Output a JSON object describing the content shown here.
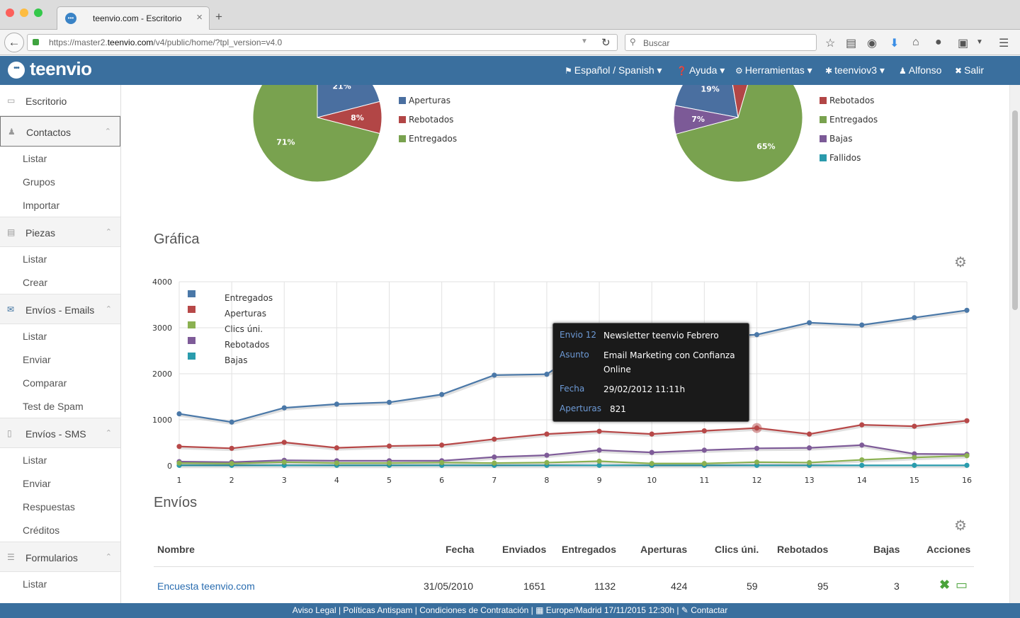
{
  "browser": {
    "tab_title": "teenvio.com - Escritorio",
    "url_prefix": "https://master2.",
    "url_domain": "teenvio.com",
    "url_suffix": "/v4/public/home/?tpl_version=v4.0",
    "search_placeholder": "Buscar",
    "new_tab_label": "+",
    "close_tab_label": "×"
  },
  "app": {
    "logo_text": "teenvio",
    "menu": [
      {
        "icon": "flag-icon",
        "label": "Español / Spanish ▾"
      },
      {
        "icon": "help-icon",
        "label": "Ayuda ▾"
      },
      {
        "icon": "gear-icon",
        "label": "Herramientas ▾"
      },
      {
        "icon": "gears-icon",
        "label": "teenviov3 ▾"
      },
      {
        "icon": "user-icon",
        "label": "Alfonso"
      },
      {
        "icon": "logout-icon",
        "label": "Salir"
      }
    ]
  },
  "sidebar": {
    "escritorio": "Escritorio",
    "contactos": {
      "label": "Contactos",
      "items": [
        "Listar",
        "Grupos",
        "Importar"
      ]
    },
    "piezas": {
      "label": "Piezas",
      "items": [
        "Listar",
        "Crear"
      ]
    },
    "envios_emails": {
      "label": "Envíos - Emails",
      "items": [
        "Listar",
        "Enviar",
        "Comparar",
        "Test de Spam"
      ]
    },
    "envios_sms": {
      "label": "Envíos - SMS",
      "items": [
        "Listar",
        "Enviar",
        "Respuestas",
        "Créditos"
      ]
    },
    "formularios": {
      "label": "Formularios",
      "items": [
        "Listar"
      ]
    }
  },
  "pies": [
    {
      "slices": [
        {
          "label": "21%",
          "value": 21,
          "color": "#4a6fa0"
        },
        {
          "label": "8%",
          "value": 8,
          "color": "#b24646"
        },
        {
          "label": "71%",
          "value": 71,
          "color": "#79a24f"
        }
      ],
      "legend": [
        {
          "name": "Aperturas",
          "color": "#4a6fa0"
        },
        {
          "name": "Rebotados",
          "color": "#b24646"
        },
        {
          "name": "Entregados",
          "color": "#79a24f"
        }
      ]
    },
    {
      "slices": [
        {
          "label": "19%",
          "value": 19,
          "color": "#4a6fa0"
        },
        {
          "label": "7%",
          "value": 7,
          "color": "#b24646"
        },
        {
          "label": "65%",
          "value": 65,
          "color": "#79a24f"
        },
        {
          "label": "7%",
          "value": 7,
          "color": "#7c5a97"
        }
      ],
      "legend": [
        {
          "name": "Rebotados",
          "color": "#b24646"
        },
        {
          "name": "Entregados",
          "color": "#79a24f"
        },
        {
          "name": "Bajas",
          "color": "#7c5a97"
        },
        {
          "name": "Fallidos",
          "color": "#2a9aac"
        }
      ]
    }
  ],
  "grafica": {
    "title": "Gráfica"
  },
  "chart_data": {
    "type": "line",
    "x": [
      1,
      2,
      3,
      4,
      5,
      6,
      7,
      8,
      9,
      10,
      11,
      12,
      13,
      14,
      15,
      16
    ],
    "ylim": [
      0,
      4000
    ],
    "yticks": [
      0,
      1000,
      2000,
      3000,
      4000
    ],
    "series": [
      {
        "name": "Entregados",
        "color": "#4a78a8",
        "values": [
          1130,
          950,
          1260,
          1340,
          1380,
          1550,
          1970,
          1990,
          2760,
          2780,
          2800,
          2850,
          3110,
          3060,
          3220,
          3380
        ]
      },
      {
        "name": "Aperturas",
        "color": "#b74848",
        "values": [
          420,
          380,
          510,
          390,
          430,
          450,
          580,
          690,
          750,
          690,
          760,
          821,
          690,
          890,
          860,
          980
        ]
      },
      {
        "name": "Clics úni.",
        "color": "#8bb151",
        "values": [
          60,
          50,
          80,
          60,
          60,
          70,
          60,
          70,
          100,
          50,
          50,
          80,
          70,
          130,
          180,
          220
        ]
      },
      {
        "name": "Rebotados",
        "color": "#7e5b98",
        "values": [
          90,
          80,
          120,
          110,
          110,
          110,
          190,
          230,
          340,
          290,
          340,
          380,
          390,
          450,
          260,
          250
        ]
      },
      {
        "name": "Bajas",
        "color": "#2a9cad",
        "values": [
          10,
          10,
          10,
          10,
          10,
          10,
          10,
          10,
          10,
          10,
          10,
          10,
          10,
          10,
          10,
          10
        ]
      }
    ]
  },
  "tooltip": {
    "envio_label": "Envio 12",
    "envio_value": "Newsletter teenvio Febrero",
    "asunto_label": "Asunto",
    "asunto_value": "Email Marketing con Confianza Online",
    "fecha_label": "Fecha",
    "fecha_value": "29/02/2012 11:11h",
    "aperturas_label": "Aperturas",
    "aperturas_value": "821"
  },
  "envios": {
    "title": "Envíos",
    "columns": [
      "Nombre",
      "Fecha",
      "Enviados",
      "Entregados",
      "Aperturas",
      "Clics úni.",
      "Rebotados",
      "Bajas",
      "Acciones"
    ],
    "rows": [
      {
        "nombre": "Encuesta teenvio.com",
        "fecha": "31/05/2010",
        "enviados": "1651",
        "entregados": "1132",
        "aperturas": "424",
        "clics": "59",
        "rebotados": "95",
        "bajas": "3"
      }
    ]
  },
  "footer": {
    "text": "Aviso Legal | Políticas Antispam | Condiciones de Contratación | ▦ Europe/Madrid 17/11/2015 12:30h | ✎ Contactar"
  }
}
